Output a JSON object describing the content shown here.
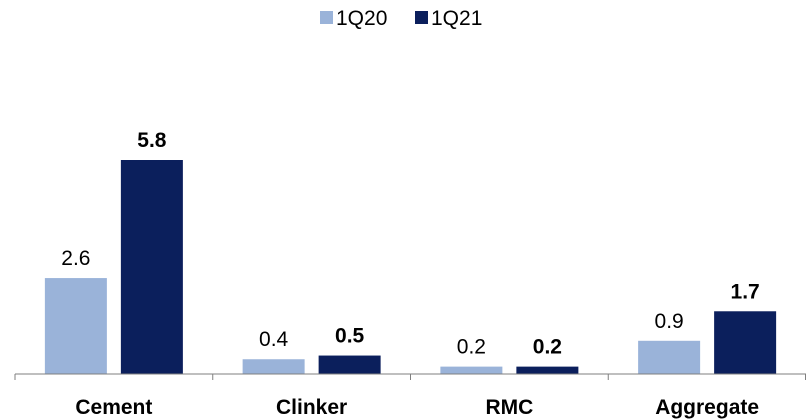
{
  "chart_data": {
    "type": "bar",
    "categories": [
      "Cement",
      "Clinker",
      "RMC",
      "Aggregate"
    ],
    "series": [
      {
        "name": "1Q20",
        "values": [
          2.6,
          0.4,
          0.2,
          0.9
        ],
        "labels": [
          "2.6",
          "0.4",
          "0.2",
          "0.9"
        ],
        "color": "#9ab3d9",
        "label_bold": false
      },
      {
        "name": "1Q21",
        "values": [
          5.8,
          0.5,
          0.2,
          1.7
        ],
        "labels": [
          "5.8",
          "0.5",
          "0.2",
          "1.7"
        ],
        "color": "#0b1f5c",
        "label_bold": true
      }
    ],
    "title": "",
    "xlabel": "",
    "ylabel": "",
    "ylim": [
      0,
      6.5
    ],
    "grid": false,
    "legend_position": "top-center"
  }
}
